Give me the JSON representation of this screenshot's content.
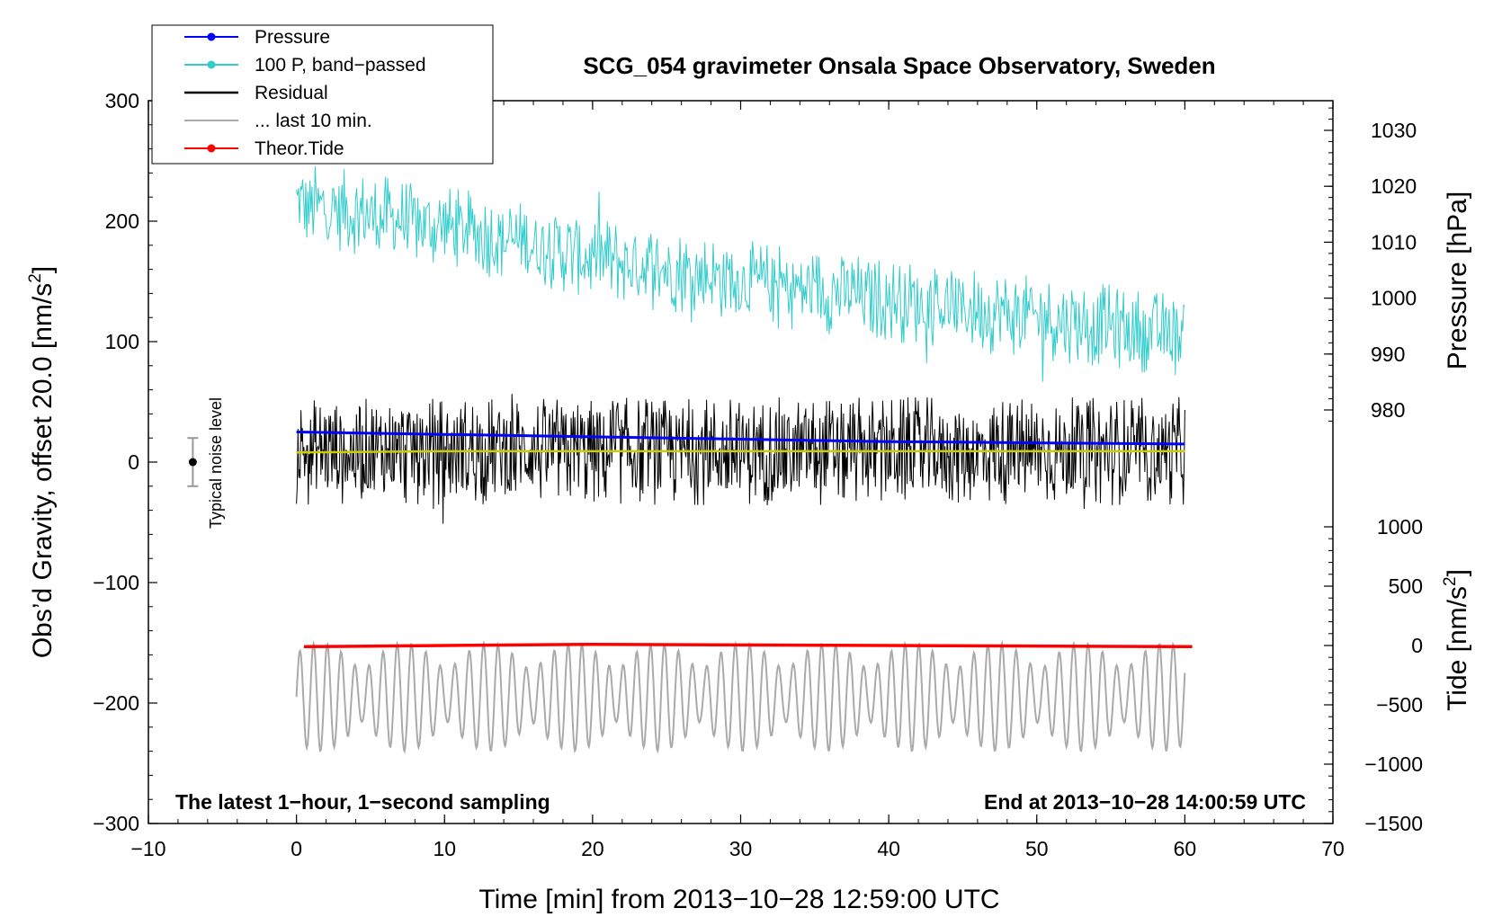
{
  "chart_data": {
    "type": "line",
    "title": "SCG_054 gravimeter Onsala Space Observatory, Sweden",
    "xlabel": "Time [min] from 2013−10−28 12:59:00 UTC",
    "ylabel_left_main": "Obs’d Gravity, offset 20.0 [nm/s",
    "ylabel_left_sup": "2",
    "ylabel_left_close": "]",
    "ylabel_right_top": "Pressure [hPa]",
    "ylabel_right_bottom_main": "Tide [nm/s",
    "ylabel_right_bottom_sup": "2",
    "ylabel_right_bottom_close": "]",
    "annotation_left": "The latest 1−hour, 1−second sampling",
    "annotation_right": "End at 2013−10−28 14:00:59 UTC",
    "noise_label": "Typical noise level",
    "noise_bar": {
      "x": -7,
      "center": 0,
      "half_range": 20
    },
    "xlim": [
      -10,
      70
    ],
    "ylim": [
      -300,
      300
    ],
    "pressure_lim": [
      970,
      1035
    ],
    "tide_lim": [
      -1500,
      1500
    ],
    "x_ticks": [
      "−10",
      "0",
      "10",
      "20",
      "30",
      "40",
      "50",
      "60",
      "70"
    ],
    "x_tick_values": [
      -10,
      0,
      10,
      20,
      30,
      40,
      50,
      60,
      70
    ],
    "y_ticks": [
      "300",
      "200",
      "100",
      "0",
      "−100",
      "−200",
      "−300"
    ],
    "y_tick_values": [
      300,
      200,
      100,
      0,
      -100,
      -200,
      -300
    ],
    "pressure_ticks": [
      "1030",
      "1020",
      "1010",
      "1000",
      "990",
      "980"
    ],
    "pressure_tick_values": [
      1030,
      1020,
      1010,
      1000,
      990,
      980
    ],
    "tide_ticks": [
      "1000",
      "500",
      "0",
      "−500",
      "−1000",
      "−1500"
    ],
    "tide_tick_values": [
      1000,
      500,
      0,
      -500,
      -1000,
      -1500
    ],
    "legend": [
      {
        "label": "Pressure",
        "color": "#0000ff",
        "marker": true
      },
      {
        "label": "100 P, band−passed",
        "color": "#33cccc",
        "marker": true
      },
      {
        "label": "Residual",
        "color": "#000000",
        "marker": false
      },
      {
        "label": "... last 10 min.",
        "color": "#aaaaaa",
        "marker": false
      },
      {
        "label": "Theor.Tide",
        "color": "#ff0000",
        "marker": true
      }
    ],
    "series": [
      {
        "name": "Pressure",
        "axis": "left",
        "color": "#0000ff",
        "x": [
          0,
          10,
          20,
          30,
          40,
          50,
          60
        ],
        "values": [
          25,
          23,
          21,
          19,
          17,
          16,
          15
        ]
      },
      {
        "name": "Residual mean",
        "axis": "left",
        "color": "#cccc00",
        "x": [
          0,
          10,
          20,
          30,
          40,
          50,
          60
        ],
        "values": [
          8,
          9,
          9,
          9,
          9,
          9,
          9
        ]
      },
      {
        "name": "100 P, band−passed",
        "axis": "left",
        "color": "#33cccc",
        "x": [
          0,
          10,
          20,
          30,
          40,
          50,
          60
        ],
        "values": [
          215,
          195,
          170,
          150,
          135,
          120,
          105
        ],
        "amplitude": 35
      },
      {
        "name": "Residual",
        "axis": "left",
        "color": "#000000",
        "x": [
          0,
          10,
          20,
          30,
          40,
          50,
          60
        ],
        "values": [
          8,
          9,
          9,
          9,
          9,
          9,
          9
        ],
        "amplitude": 45
      },
      {
        "name": "... last 10 min.",
        "axis": "left",
        "color": "#aaaaaa",
        "x": [
          0,
          10,
          20,
          30,
          40,
          50,
          60
        ],
        "values": [
          -195,
          -195,
          -195,
          -195,
          -195,
          -195,
          -195
        ],
        "amplitude": 45
      },
      {
        "name": "Theor.Tide",
        "axis": "right_tide",
        "color": "#ff0000",
        "x": [
          0.5,
          20,
          40,
          60.5
        ],
        "values": [
          -10,
          10,
          0,
          -10
        ]
      }
    ]
  }
}
